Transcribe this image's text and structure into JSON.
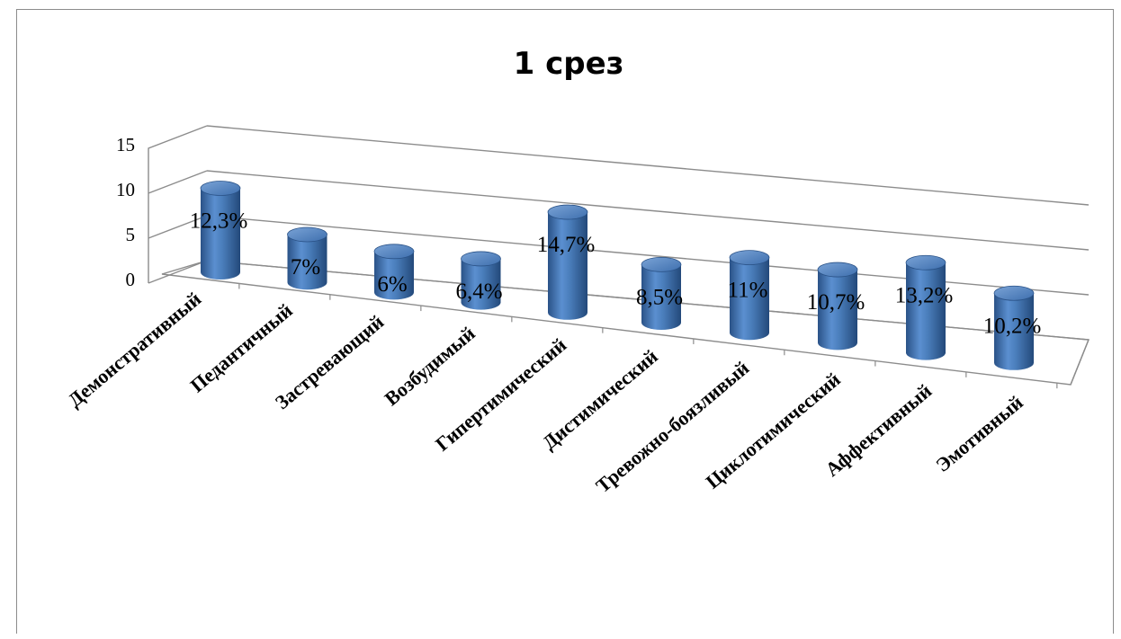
{
  "chart_data": {
    "type": "bar",
    "title": "1 срез",
    "categories": [
      "Демонстративный",
      "Педантичный",
      "Застревающий",
      "Возбудимый",
      "Гипертимический",
      "Дистимический",
      "Тревожно-боязливый",
      "Циклотимический",
      "Аффективный",
      "Эмотивный"
    ],
    "values": [
      12.3,
      7,
      6,
      6.4,
      14.7,
      8.5,
      11,
      10.7,
      13.2,
      10.2
    ],
    "data_labels": [
      "12,3%",
      "7%",
      "6%",
      "6,4%",
      "14,7%",
      "8,5%",
      "11%",
      "10,7%",
      "13,2%",
      "10,2%"
    ],
    "yticks": [
      "0",
      "5",
      "10",
      "15"
    ],
    "ylim": [
      0,
      15
    ],
    "xlabel": "",
    "ylabel": "",
    "grid": true,
    "style": "3d-cylinder",
    "colors": {
      "bar": "#4a7ebb",
      "bar_dark": "#2a5287",
      "bar_light": "#7aa3d6",
      "grid": "#8c8c8c"
    }
  }
}
